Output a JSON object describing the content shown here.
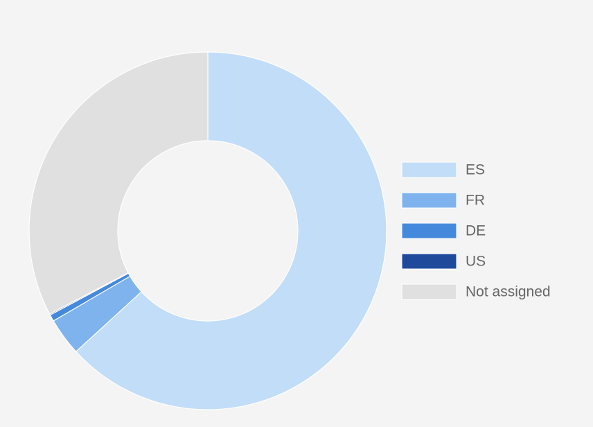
{
  "chart_data": {
    "type": "donut",
    "categories": [
      "ES",
      "FR",
      "DE",
      "US",
      "Not assigned"
    ],
    "values": [
      63.2,
      3.4,
      0.6,
      0.1,
      32.7
    ],
    "colors": [
      "#c2ddf7",
      "#7fb3ee",
      "#4589dc",
      "#1f4a9c",
      "#e0e0e0"
    ],
    "legend": "right"
  }
}
